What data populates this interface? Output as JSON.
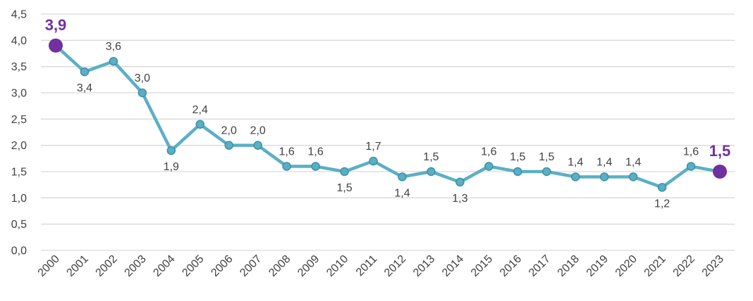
{
  "colors": {
    "line": "#5BAFC5",
    "marker_fill": "#5BAFC5",
    "marker_stroke": "#3D8FA6",
    "highlight": "#7030A0",
    "grid": "#D9D9D9",
    "text": "#404040"
  },
  "chart_data": {
    "type": "line",
    "title": "",
    "xlabel": "",
    "ylabel": "",
    "ylim": [
      0,
      4.5
    ],
    "yticks": [
      "0,0",
      "0,5",
      "1,0",
      "1,5",
      "2,0",
      "2,5",
      "3,0",
      "3,5",
      "4,0",
      "4,5"
    ],
    "yticks_values": [
      0,
      0.5,
      1.0,
      1.5,
      2.0,
      2.5,
      3.0,
      3.5,
      4.0,
      4.5
    ],
    "grid": true,
    "legend": "none",
    "x": [
      "2000",
      "2001",
      "2002",
      "2003",
      "2004",
      "2005",
      "2006",
      "2007",
      "2008",
      "2009",
      "2010",
      "2011",
      "2012",
      "2013",
      "2014",
      "2015",
      "2016",
      "2017",
      "2018",
      "2019",
      "2020",
      "2021",
      "2022",
      "2023"
    ],
    "series": [
      {
        "values": [
          3.9,
          3.4,
          3.6,
          3.0,
          1.9,
          2.4,
          2.0,
          2.0,
          1.6,
          1.6,
          1.5,
          1.7,
          1.4,
          1.5,
          1.3,
          1.6,
          1.5,
          1.5,
          1.4,
          1.4,
          1.4,
          1.2,
          1.6,
          1.5
        ],
        "labels": [
          "3,9",
          "3,4",
          "3,6",
          "3,0",
          "1,9",
          "2,4",
          "2,0",
          "2,0",
          "1,6",
          "1,6",
          "1,5",
          "1,7",
          "1,4",
          "1,5",
          "1,3",
          "1,6",
          "1,5",
          "1,5",
          "1,4",
          "1,4",
          "1,4",
          "1,2",
          "1,6",
          "1,5"
        ],
        "label_position": [
          "above",
          "below",
          "above",
          "above",
          "below",
          "above",
          "above",
          "above",
          "above",
          "above",
          "below",
          "above",
          "below",
          "above",
          "below",
          "above",
          "above",
          "above",
          "above",
          "above",
          "above",
          "below",
          "above",
          "above"
        ],
        "highlighted_points": [
          0,
          23
        ]
      }
    ]
  }
}
